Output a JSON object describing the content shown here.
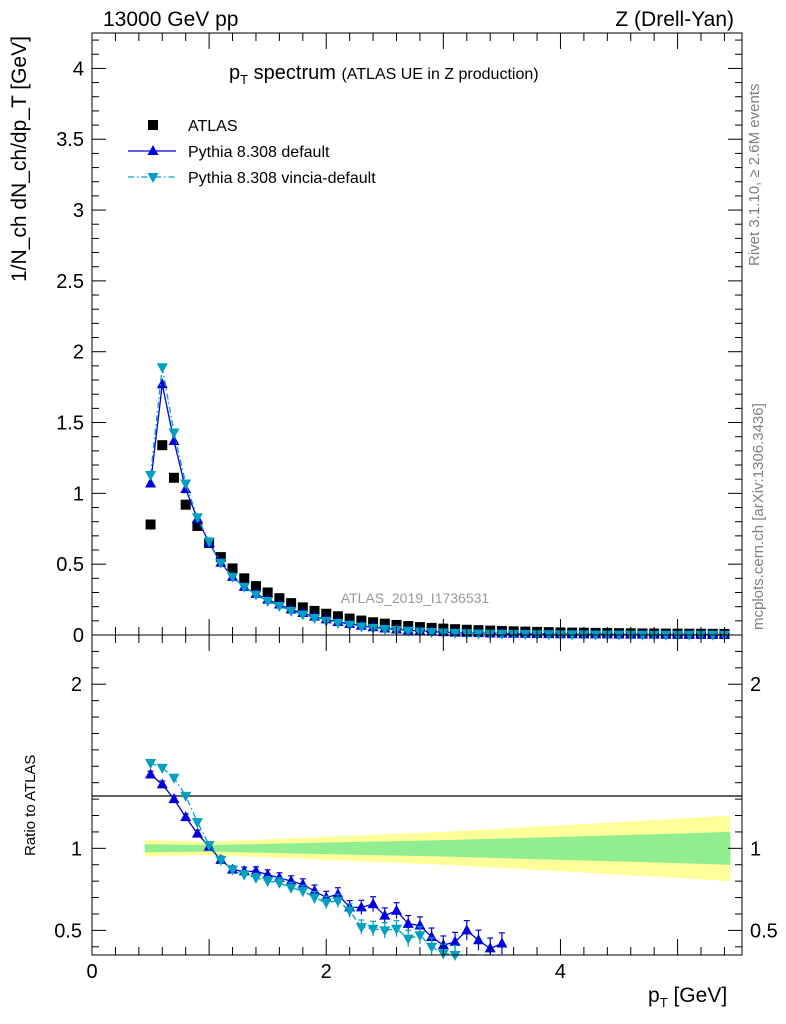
{
  "header": {
    "energy": "13000 GeV pp",
    "process": "Z (Drell-Yan)"
  },
  "side_labels": {
    "rivet": "Rivet 3.1.10, ≥ 2.6M events",
    "mcplots": "mcplots.cern.ch [arXiv:1306.3436]"
  },
  "chart_data": [
    {
      "type": "scatter",
      "title_main": "p",
      "title_sub": "T",
      "title_rest": " spectrum",
      "title_note": "(ATLAS UE in Z production)",
      "watermark": "ATLAS_2019_I1736531",
      "ylabel": "1/N_ch dN_ch/dp_T [GeV]",
      "xlim": [
        0,
        5.55
      ],
      "ylim": [
        0,
        4.25
      ],
      "yticks": [
        "0",
        "0.5",
        "1",
        "1.5",
        "2",
        "2.5",
        "3",
        "3.5",
        "4"
      ],
      "legend_placement": "top-left",
      "x": [
        0.5,
        0.6,
        0.7,
        0.8,
        0.9,
        1.0,
        1.1,
        1.2,
        1.3,
        1.4,
        1.5,
        1.6,
        1.7,
        1.8,
        1.9,
        2.0,
        2.1,
        2.2,
        2.3,
        2.4,
        2.5,
        2.6,
        2.7,
        2.8,
        2.9,
        3.0,
        3.1,
        3.2,
        3.3,
        3.4,
        3.5,
        3.6,
        3.7,
        3.8,
        3.9,
        4.0,
        4.1,
        4.2,
        4.3,
        4.4,
        4.5,
        4.6,
        4.7,
        4.8,
        4.9,
        5.0,
        5.1,
        5.2,
        5.3,
        5.4
      ],
      "series": [
        {
          "name": "ATLAS",
          "color": "#000000",
          "marker": "square",
          "line": "none",
          "values": [
            0.78,
            1.34,
            1.11,
            0.92,
            0.77,
            0.65,
            0.55,
            0.47,
            0.4,
            0.345,
            0.3,
            0.26,
            0.225,
            0.195,
            0.17,
            0.15,
            0.132,
            0.116,
            0.102,
            0.09,
            0.08,
            0.071,
            0.063,
            0.056,
            0.05,
            0.045,
            0.041,
            0.037,
            0.034,
            0.031,
            0.028,
            0.026,
            0.024,
            0.022,
            0.02,
            0.018,
            0.017,
            0.016,
            0.015,
            0.014,
            0.013,
            0.012,
            0.011,
            0.0105,
            0.01,
            0.0095,
            0.009,
            0.0085,
            0.008,
            0.0075
          ]
        },
        {
          "name": "Pythia 8.308 default",
          "color": "#0000dd",
          "marker": "triangle-up",
          "line": "solid",
          "values": [
            1.07,
            1.77,
            1.37,
            1.03,
            0.82,
            0.65,
            0.51,
            0.41,
            0.34,
            0.29,
            0.25,
            0.215,
            0.18,
            0.155,
            0.13,
            0.11,
            0.092,
            0.078,
            0.065,
            0.055,
            0.046,
            0.039,
            0.033,
            0.028,
            0.024,
            0.02,
            0.017,
            0.015,
            0.013,
            0.011,
            0.01,
            0.009,
            0.008,
            0.007,
            0.006,
            0.005,
            0.005,
            0.004,
            0.004,
            0.004,
            0.003,
            0.003,
            0.003,
            0.003,
            0.002,
            0.002,
            0.002,
            0.002,
            0.002,
            0.002
          ]
        },
        {
          "name": "Pythia 8.308 vincia-default",
          "color": "#00a0c0",
          "marker": "triangle-down",
          "line": "dashdot",
          "values": [
            1.13,
            1.89,
            1.43,
            1.07,
            0.83,
            0.66,
            0.51,
            0.41,
            0.34,
            0.285,
            0.24,
            0.205,
            0.17,
            0.145,
            0.12,
            0.1,
            0.085,
            0.072,
            0.06,
            0.05,
            0.042,
            0.035,
            0.03,
            0.025,
            0.021,
            0.018,
            0.015,
            0.013,
            0.011,
            0.01,
            0.009,
            0.008,
            0.007,
            0.006,
            0.005,
            0.005,
            0.004,
            0.004,
            0.003,
            0.003,
            0.003,
            0.003,
            0.002,
            0.002,
            0.002,
            0.002,
            0.002,
            0.002,
            0.002,
            0.002
          ]
        }
      ]
    },
    {
      "type": "line",
      "ylabel": "Ratio to ATLAS",
      "xlabel_main": "p",
      "xlabel_sub": "T",
      "xlabel_rest": " [GeV]",
      "xlim": [
        0,
        5.55
      ],
      "ylim": [
        0.35,
        2.3
      ],
      "xticks": [
        "0",
        "2",
        "4"
      ],
      "yticks": [
        "0.5",
        "1",
        "2"
      ],
      "band_x": [
        0.45,
        1.0,
        2.0,
        3.0,
        4.0,
        5.0,
        5.45
      ],
      "band_inner": [
        0.025,
        0.02,
        0.035,
        0.05,
        0.07,
        0.09,
        0.1
      ],
      "band_outer": [
        0.05,
        0.04,
        0.07,
        0.1,
        0.14,
        0.18,
        0.2
      ],
      "band_colors": {
        "inner": "#90ee90",
        "outer": "#ffff99"
      },
      "x": [
        0.5,
        0.6,
        0.7,
        0.8,
        0.9,
        1.0,
        1.1,
        1.2,
        1.3,
        1.4,
        1.5,
        1.6,
        1.7,
        1.8,
        1.9,
        2.0,
        2.1,
        2.2,
        2.3,
        2.4,
        2.5,
        2.6,
        2.7,
        2.8,
        2.9,
        3.0,
        3.1,
        3.2,
        3.3,
        3.4,
        3.5
      ],
      "series": [
        {
          "name": "Pythia 8.308 default",
          "color": "#0000dd",
          "marker": "triangle-up",
          "values": [
            1.45,
            1.39,
            1.3,
            1.19,
            1.09,
            1.01,
            0.93,
            0.87,
            0.86,
            0.86,
            0.84,
            0.82,
            0.8,
            0.78,
            0.74,
            0.7,
            0.72,
            0.64,
            0.64,
            0.66,
            0.59,
            0.62,
            0.54,
            0.53,
            0.46,
            0.41,
            0.43,
            0.5,
            0.44,
            0.39,
            0.42
          ]
        },
        {
          "name": "Pythia 8.308 vincia-default",
          "color": "#00a0c0",
          "marker": "triangle-down",
          "values": [
            1.52,
            1.49,
            1.43,
            1.32,
            1.16,
            1.02,
            0.93,
            0.87,
            0.84,
            0.82,
            0.8,
            0.79,
            0.76,
            0.74,
            0.7,
            0.67,
            0.68,
            0.62,
            0.52,
            0.51,
            0.5,
            0.51,
            0.45,
            0.47,
            0.4,
            0.36,
            0.35,
            0.34,
            0.3,
            0.28,
            0.26
          ]
        }
      ]
    }
  ]
}
